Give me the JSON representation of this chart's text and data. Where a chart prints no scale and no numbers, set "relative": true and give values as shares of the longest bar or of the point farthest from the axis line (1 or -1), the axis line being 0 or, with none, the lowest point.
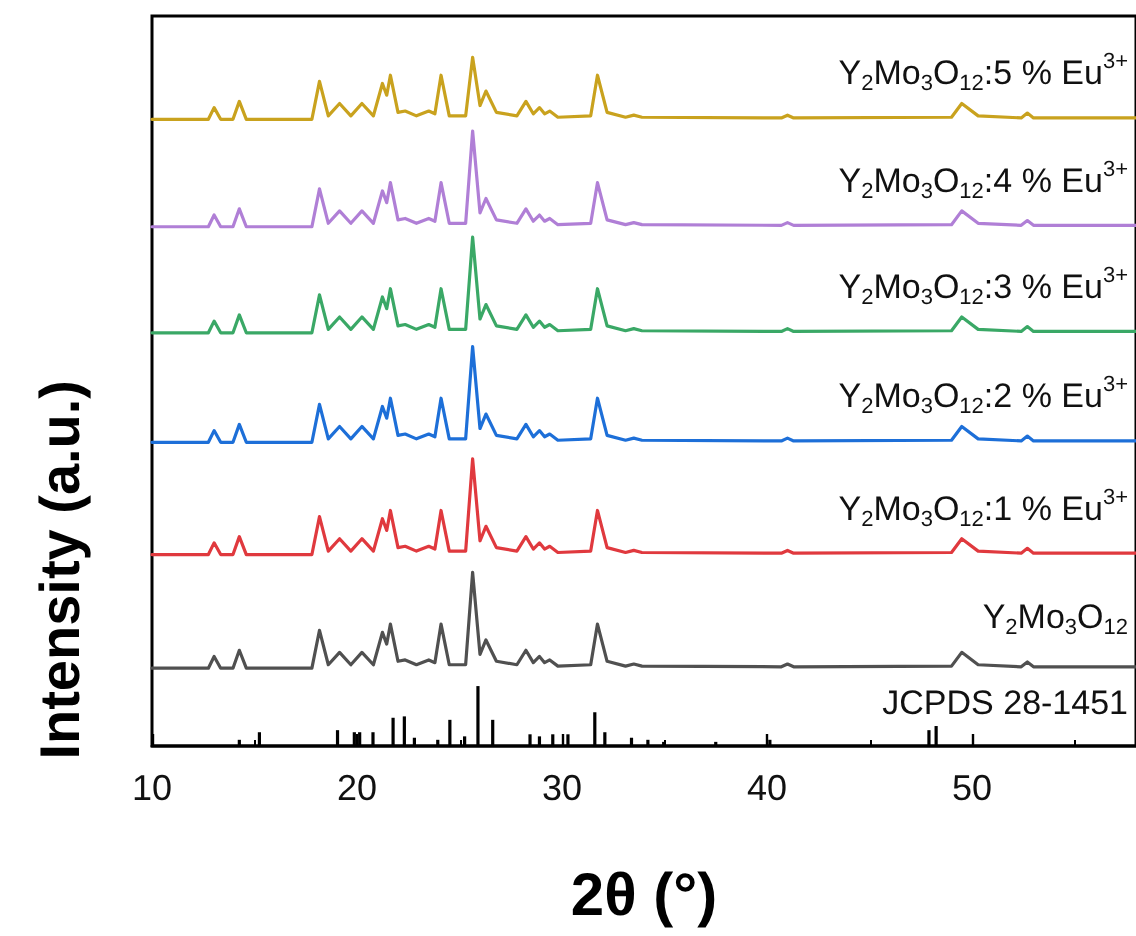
{
  "chart_data": {
    "type": "line",
    "relative": true,
    "xlabel": "2θ (°)",
    "ylabel": "Intensity (a.u.)",
    "xlim": [
      10,
      58
    ],
    "xticks": [
      10,
      20,
      30,
      40,
      50
    ],
    "marker": "none",
    "line_style": "solid",
    "x": [
      10,
      12.75,
      13.03,
      13.35,
      13.95,
      14.26,
      14.6,
      17.8,
      18.17,
      18.6,
      19.15,
      19.7,
      20.24,
      20.8,
      21.24,
      21.45,
      21.63,
      22.0,
      22.35,
      22.9,
      23.5,
      23.8,
      24.1,
      24.5,
      25.3,
      25.64,
      26.0,
      26.29,
      26.8,
      27.8,
      28.24,
      28.6,
      28.9,
      29.15,
      29.4,
      29.8,
      31.4,
      31.73,
      32.2,
      33.1,
      33.5,
      33.9,
      40.7,
      41.0,
      41.3,
      49.0,
      49.5,
      50.3,
      52.4,
      52.7,
      53.0,
      58
    ],
    "series": [
      {
        "name": "JCPDS 28-1451",
        "type": "bar",
        "color": "#000000",
        "x": [
          14.26,
          15.24,
          19.05,
          19.87,
          20.13,
          20.78,
          21.76,
          22.31,
          22.8,
          23.94,
          24.53,
          25.25,
          25.9,
          26.62,
          28.44,
          28.9,
          29.55,
          30.29,
          31.6,
          32.09,
          33.39,
          34.19,
          34.96,
          37.5,
          40.14,
          47.9,
          48.25
        ],
        "values": [
          0.009,
          0.02,
          0.023,
          0.02,
          0.02,
          0.02,
          0.041,
          0.043,
          0.012,
          0.009,
          0.038,
          0.014,
          0.087,
          0.038,
          0.017,
          0.014,
          0.017,
          0.017,
          0.049,
          0.02,
          0.012,
          0.009,
          0.006,
          0.006,
          0.009,
          0.023,
          0.029
        ]
      },
      {
        "name": "Y$_{2}$Mo$_{3}$O$_{12}$",
        "color": "#505050",
        "values": [
          0.113,
          0.113,
          0.13,
          0.113,
          0.113,
          0.139,
          0.113,
          0.113,
          0.168,
          0.118,
          0.136,
          0.118,
          0.136,
          0.118,
          0.165,
          0.148,
          0.177,
          0.123,
          0.125,
          0.118,
          0.125,
          0.121,
          0.177,
          0.118,
          0.118,
          0.252,
          0.133,
          0.154,
          0.123,
          0.118,
          0.139,
          0.121,
          0.13,
          0.121,
          0.125,
          0.116,
          0.118,
          0.177,
          0.123,
          0.116,
          0.119,
          0.116,
          0.115,
          0.119,
          0.115,
          0.116,
          0.136,
          0.118,
          0.115,
          0.122,
          0.115,
          0.115
        ]
      },
      {
        "name": "Y$_{2}$Mo$_{3}$O$_{12}$:1 % Eu$^{3+}$",
        "color": "#e0393e",
        "values": [
          0.278,
          0.278,
          0.295,
          0.278,
          0.278,
          0.304,
          0.278,
          0.278,
          0.333,
          0.283,
          0.301,
          0.283,
          0.301,
          0.283,
          0.33,
          0.313,
          0.342,
          0.288,
          0.29,
          0.283,
          0.29,
          0.286,
          0.342,
          0.283,
          0.283,
          0.417,
          0.298,
          0.319,
          0.288,
          0.283,
          0.304,
          0.286,
          0.295,
          0.286,
          0.29,
          0.281,
          0.283,
          0.342,
          0.288,
          0.281,
          0.284,
          0.281,
          0.28,
          0.284,
          0.28,
          0.281,
          0.301,
          0.283,
          0.28,
          0.287,
          0.28,
          0.28
        ]
      },
      {
        "name": "Y$_{2}$Mo$_{3}$O$_{12}$:2 % Eu$^{3+}$",
        "color": "#1d6fd8",
        "values": [
          0.441,
          0.441,
          0.458,
          0.441,
          0.441,
          0.467,
          0.441,
          0.441,
          0.496,
          0.446,
          0.464,
          0.446,
          0.464,
          0.446,
          0.493,
          0.476,
          0.505,
          0.451,
          0.453,
          0.446,
          0.453,
          0.449,
          0.505,
          0.446,
          0.446,
          0.58,
          0.461,
          0.482,
          0.451,
          0.446,
          0.467,
          0.449,
          0.458,
          0.449,
          0.453,
          0.444,
          0.446,
          0.505,
          0.451,
          0.444,
          0.447,
          0.444,
          0.443,
          0.447,
          0.443,
          0.444,
          0.464,
          0.446,
          0.443,
          0.45,
          0.443,
          0.443
        ]
      },
      {
        "name": "Y$_{2}$Mo$_{3}$O$_{12}$:3 % Eu$^{3+}$",
        "color": "#3aa866",
        "values": [
          0.6,
          0.6,
          0.617,
          0.6,
          0.6,
          0.626,
          0.6,
          0.6,
          0.655,
          0.605,
          0.623,
          0.605,
          0.623,
          0.605,
          0.652,
          0.635,
          0.664,
          0.61,
          0.612,
          0.605,
          0.612,
          0.608,
          0.664,
          0.605,
          0.605,
          0.739,
          0.62,
          0.641,
          0.61,
          0.605,
          0.626,
          0.608,
          0.617,
          0.608,
          0.612,
          0.603,
          0.605,
          0.664,
          0.61,
          0.603,
          0.606,
          0.603,
          0.602,
          0.606,
          0.602,
          0.603,
          0.623,
          0.605,
          0.602,
          0.609,
          0.602,
          0.602
        ]
      },
      {
        "name": "Y$_{2}$Mo$_{3}$O$_{12}$:4 % Eu$^{3+}$",
        "color": "#b07fd6",
        "values": [
          0.754,
          0.754,
          0.771,
          0.754,
          0.754,
          0.78,
          0.754,
          0.754,
          0.809,
          0.759,
          0.777,
          0.759,
          0.777,
          0.759,
          0.806,
          0.789,
          0.818,
          0.764,
          0.766,
          0.759,
          0.766,
          0.762,
          0.818,
          0.759,
          0.759,
          0.893,
          0.774,
          0.795,
          0.764,
          0.759,
          0.78,
          0.762,
          0.771,
          0.762,
          0.766,
          0.757,
          0.759,
          0.818,
          0.764,
          0.757,
          0.76,
          0.757,
          0.756,
          0.76,
          0.756,
          0.757,
          0.777,
          0.759,
          0.756,
          0.763,
          0.756,
          0.756
        ]
      },
      {
        "name": "Y$_{2}$Mo$_{3}$O$_{12}$:5 % Eu$^{3+}$",
        "color": "#c9a21e",
        "values": [
          0.91,
          0.91,
          0.927,
          0.91,
          0.91,
          0.936,
          0.91,
          0.91,
          0.965,
          0.915,
          0.933,
          0.915,
          0.933,
          0.915,
          0.962,
          0.945,
          0.974,
          0.92,
          0.922,
          0.915,
          0.922,
          0.918,
          0.974,
          0.915,
          0.915,
          1,
          0.93,
          0.951,
          0.92,
          0.915,
          0.936,
          0.918,
          0.927,
          0.918,
          0.922,
          0.913,
          0.915,
          0.974,
          0.92,
          0.913,
          0.916,
          0.913,
          0.912,
          0.916,
          0.912,
          0.913,
          0.933,
          0.915,
          0.912,
          0.919,
          0.912,
          0.912
        ]
      }
    ]
  }
}
